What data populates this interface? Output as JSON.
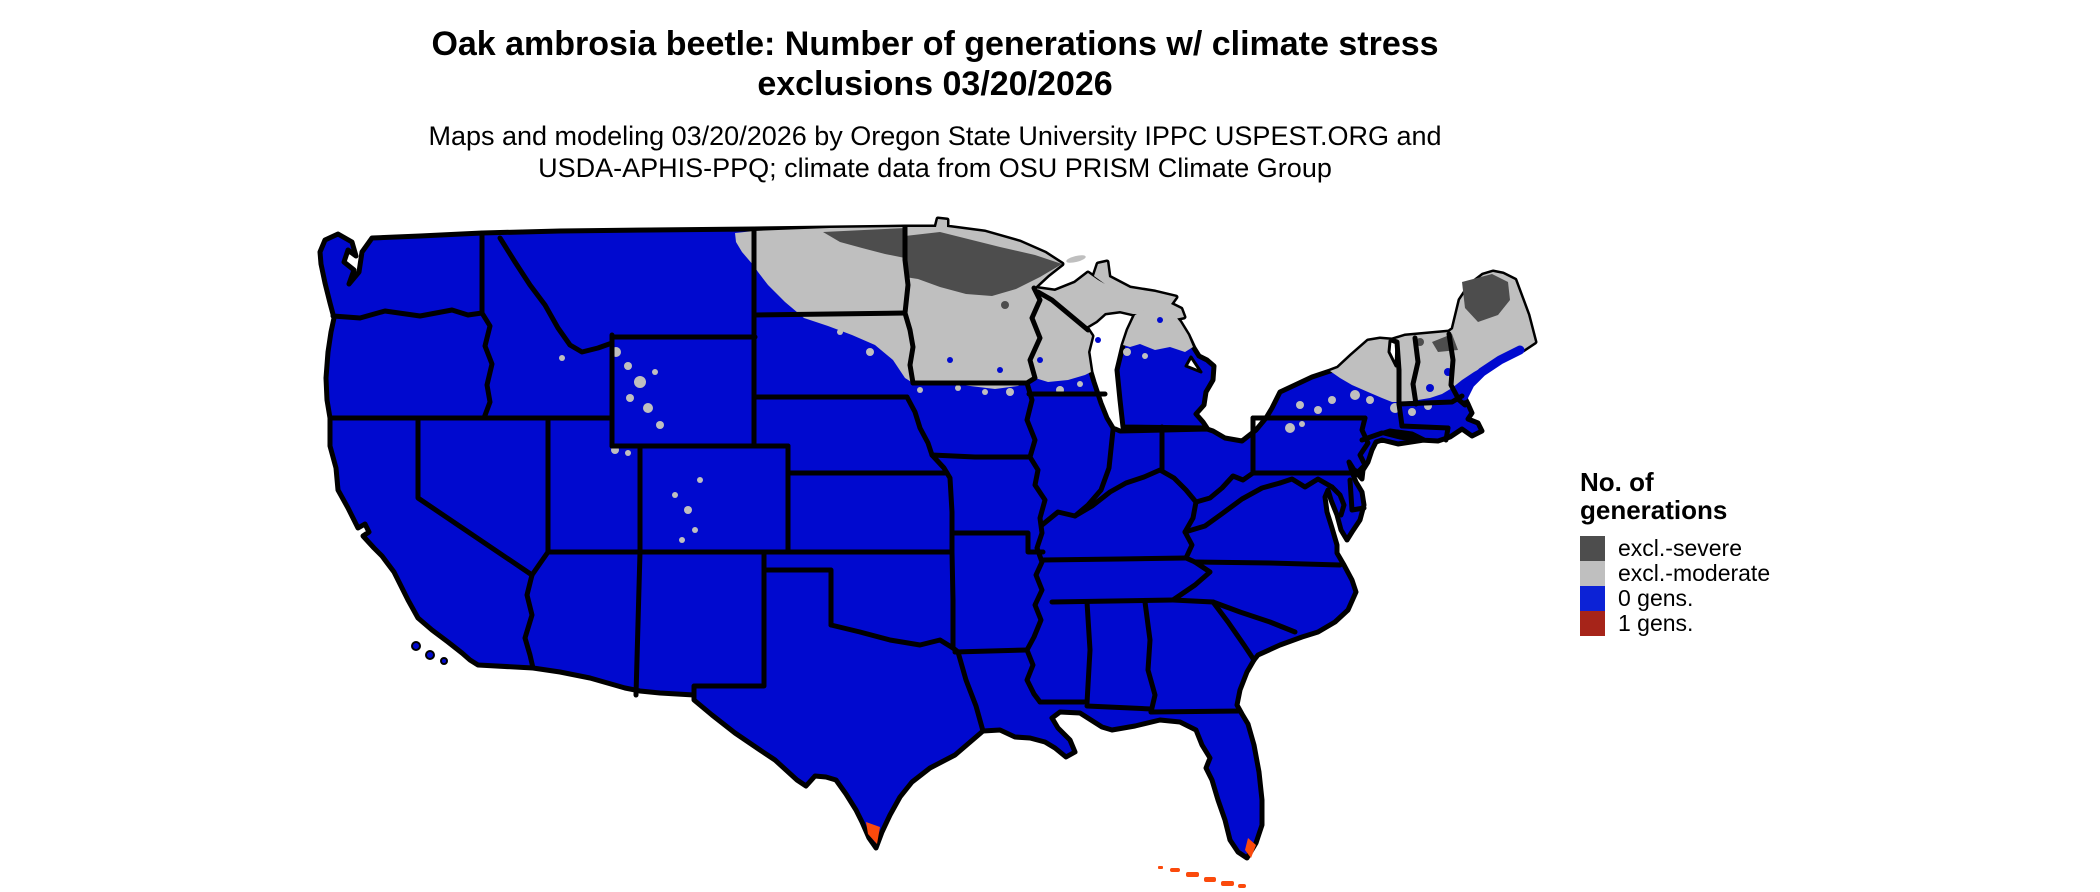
{
  "title": {
    "line1": "Oak ambrosia beetle: Number of generations w/ climate stress",
    "line2": "exclusions 03/20/2026"
  },
  "subtitle": {
    "line1": "Maps and modeling 03/20/2026 by Oregon State University IPPC USPEST.ORG and",
    "line2": "USDA-APHIS-PPQ; climate data from OSU PRISM Climate Group"
  },
  "legend": {
    "title_line1": "No. of",
    "title_line2": "generations",
    "items": [
      {
        "label": "excl.-severe",
        "color": "#4d4d4d"
      },
      {
        "label": "excl.-moderate",
        "color": "#bfbfbf"
      },
      {
        "label": "0 gens.",
        "color": "#0c22d6"
      },
      {
        "label": "1 gens.",
        "color": "#a62419"
      }
    ]
  },
  "map": {
    "colors": {
      "zero_generations": "#0009cf",
      "excl_moderate": "#bfbfbf",
      "excl_severe": "#4d4d4d",
      "one_generation": "#fb4a0c",
      "border": "#000000",
      "water": "#ffffff"
    }
  }
}
